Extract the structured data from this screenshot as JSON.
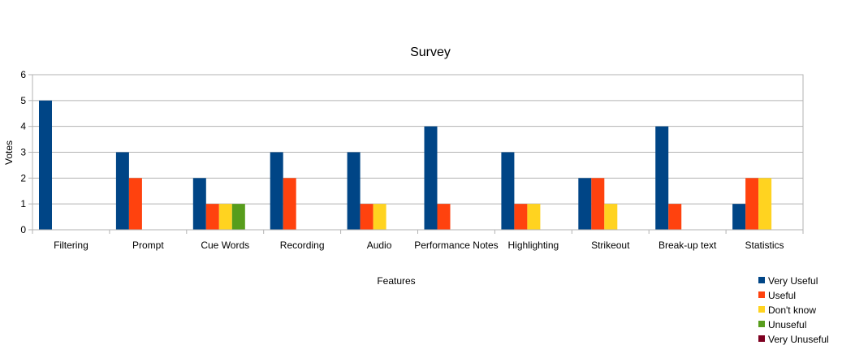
{
  "chart_data": {
    "type": "bar",
    "title": "Survey",
    "xlabel": "Features",
    "ylabel": "Votes",
    "ylim": [
      0,
      6
    ],
    "yticks": [
      0,
      1,
      2,
      3,
      4,
      5,
      6
    ],
    "grid": true,
    "legend_position": "bottom-right",
    "categories": [
      "Filtering",
      "Prompt",
      "Cue Words",
      "Recording",
      "Audio",
      "Performance Notes",
      "Highlighting",
      "Strikeout",
      "Break-up text",
      "Statistics"
    ],
    "series": [
      {
        "name": "Very Useful",
        "color": "#004586",
        "values": [
          5,
          3,
          2,
          3,
          3,
          4,
          3,
          2,
          4,
          1
        ]
      },
      {
        "name": "Useful",
        "color": "#ff420e",
        "values": [
          0,
          2,
          1,
          2,
          1,
          1,
          1,
          2,
          1,
          2
        ]
      },
      {
        "name": "Don't know",
        "color": "#ffd320",
        "values": [
          0,
          0,
          1,
          0,
          1,
          0,
          1,
          1,
          0,
          2
        ]
      },
      {
        "name": "Unuseful",
        "color": "#579d1c",
        "values": [
          0,
          0,
          1,
          0,
          0,
          0,
          0,
          0,
          0,
          0
        ]
      },
      {
        "name": "Very Unuseful",
        "color": "#7e0021",
        "values": [
          0,
          0,
          0,
          0,
          0,
          0,
          0,
          0,
          0,
          0
        ]
      }
    ]
  }
}
